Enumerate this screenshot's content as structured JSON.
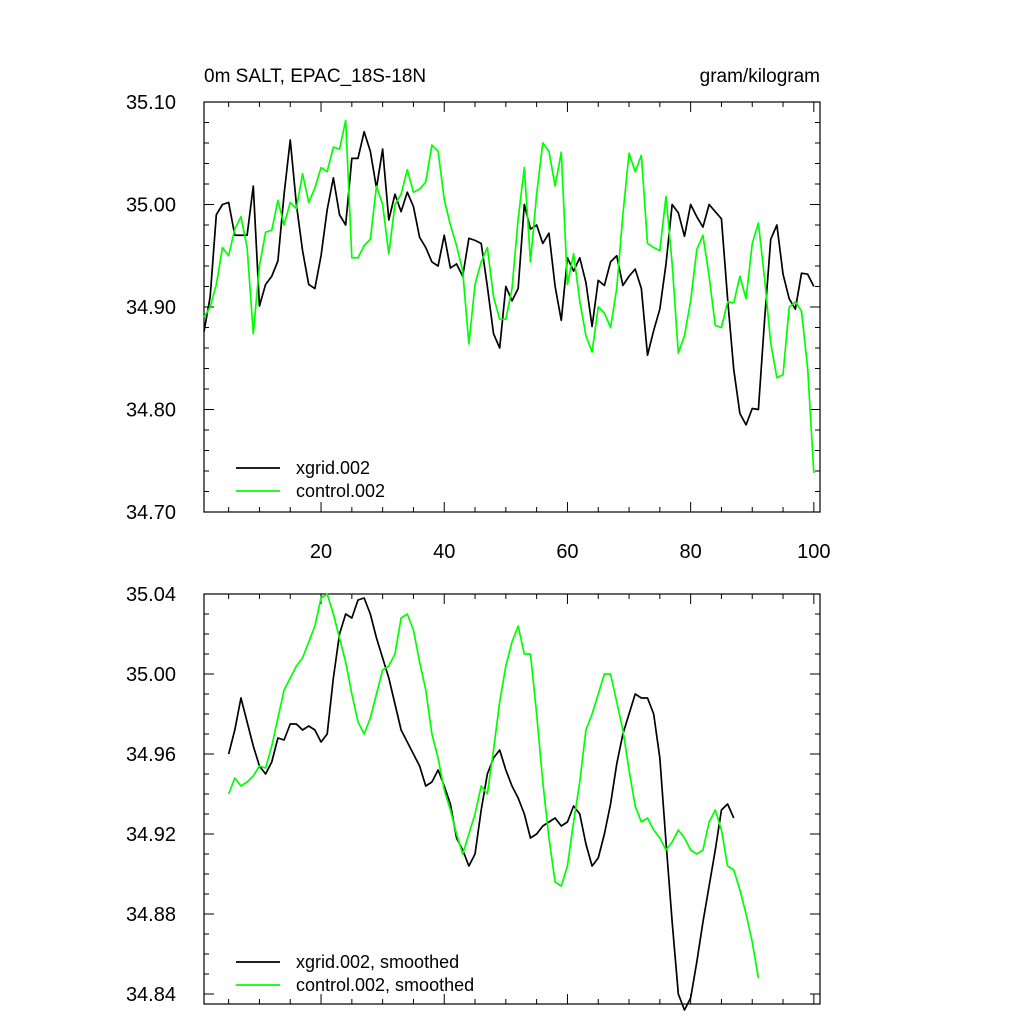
{
  "chart_data": [
    {
      "type": "line",
      "title_left": "0m SALT, EPAC_18S-18N",
      "title_right": "gram/kilogram",
      "xlabel": "",
      "ylabel": "",
      "xlim": [
        1,
        101
      ],
      "ylim": [
        34.7,
        35.1
      ],
      "grid": false,
      "legend_position": "bottom-left",
      "x_ticks": [
        20,
        40,
        60,
        80,
        100
      ],
      "x_tick_labels": [
        "20",
        "40",
        "60",
        "80",
        "100"
      ],
      "y_ticks": [
        34.7,
        34.8,
        34.9,
        35.0,
        35.1
      ],
      "y_tick_labels": [
        "34.70",
        "34.80",
        "34.90",
        "35.00",
        "35.10"
      ],
      "x_start": 1,
      "series": [
        {
          "name": "xgrid.002",
          "color": "#000000",
          "values": [
            34.876,
            34.91,
            34.99,
            35.0,
            35.002,
            34.97,
            34.97,
            34.97,
            35.018,
            34.901,
            34.922,
            34.93,
            34.945,
            35.01,
            35.063,
            35.0,
            34.955,
            34.922,
            34.918,
            34.95,
            34.995,
            35.026,
            34.99,
            34.98,
            35.045,
            35.045,
            35.071,
            35.052,
            35.016,
            35.054,
            34.985,
            35.01,
            34.993,
            35.012,
            34.998,
            34.968,
            34.958,
            34.944,
            34.94,
            34.97,
            34.938,
            34.942,
            34.93,
            34.967,
            34.965,
            34.962,
            34.92,
            34.874,
            34.86,
            34.92,
            34.906,
            34.918,
            35.0,
            34.976,
            34.98,
            34.962,
            34.972,
            34.92,
            34.887,
            34.948,
            34.935,
            34.948,
            34.924,
            34.881,
            34.926,
            34.921,
            34.944,
            34.95,
            34.921,
            34.93,
            34.937,
            34.918,
            34.853,
            34.877,
            34.898,
            34.942,
            35.0,
            34.992,
            34.969,
            35.0,
            34.988,
            34.978,
            35.0,
            34.993,
            34.986,
            34.908,
            34.839,
            34.796,
            34.785,
            34.801,
            34.8,
            34.887,
            34.966,
            34.98,
            34.932,
            34.908,
            34.898,
            34.933,
            34.932,
            34.92
          ]
        },
        {
          "name": "control.002",
          "color": "#00ff00",
          "values": [
            34.89,
            34.9,
            34.922,
            34.958,
            34.95,
            34.976,
            34.988,
            34.958,
            34.874,
            34.94,
            34.973,
            34.975,
            35.004,
            34.98,
            35.002,
            34.996,
            35.03,
            35.002,
            35.016,
            35.036,
            35.032,
            35.056,
            35.054,
            35.082,
            34.948,
            34.948,
            34.96,
            34.966,
            35.018,
            35.0,
            34.952,
            35.0,
            35.01,
            35.034,
            35.012,
            35.015,
            35.022,
            35.058,
            35.052,
            35.005,
            34.98,
            34.96,
            34.935,
            34.864,
            34.922,
            34.944,
            34.958,
            34.91,
            34.888,
            34.888,
            34.918,
            34.986,
            35.036,
            34.944,
            35.01,
            35.06,
            35.052,
            35.018,
            35.051,
            34.922,
            34.952,
            34.906,
            34.872,
            34.856,
            34.9,
            34.894,
            34.88,
            34.918,
            34.99,
            35.05,
            35.032,
            35.048,
            34.962,
            34.958,
            34.955,
            35.008,
            34.942,
            34.855,
            34.872,
            34.906,
            34.956,
            34.97,
            34.93,
            34.882,
            34.88,
            34.905,
            34.904,
            34.93,
            34.908,
            34.962,
            34.982,
            34.928,
            34.865,
            34.831,
            34.834,
            34.9,
            34.905,
            34.896,
            34.84,
            34.738
          ]
        }
      ]
    },
    {
      "type": "line",
      "xlabel": "",
      "ylabel": "",
      "xlim": [
        1,
        101
      ],
      "ylim": [
        34.835,
        35.04
      ],
      "grid": false,
      "legend_position": "bottom-left",
      "x_ticks": [
        20,
        40,
        60,
        80,
        100
      ],
      "y_ticks": [
        34.84,
        34.88,
        34.92,
        34.96,
        35.0,
        35.04
      ],
      "y_tick_labels": [
        "34.84",
        "34.88",
        "34.92",
        "34.96",
        "35.00",
        "35.04"
      ],
      "x_start": 5,
      "series": [
        {
          "name": "xgrid.002, smoothed",
          "color": "#000000",
          "values": [
            34.96,
            34.972,
            34.988,
            34.976,
            34.964,
            34.954,
            34.95,
            34.956,
            34.968,
            34.967,
            34.975,
            34.975,
            34.972,
            34.974,
            34.972,
            34.966,
            34.97,
            34.998,
            35.02,
            35.03,
            35.028,
            35.037,
            35.038,
            35.03,
            35.018,
            35.008,
            34.998,
            34.985,
            34.972,
            34.966,
            34.96,
            34.954,
            34.944,
            34.946,
            34.952,
            34.944,
            34.935,
            34.918,
            34.912,
            34.904,
            34.91,
            34.932,
            34.95,
            34.958,
            34.962,
            34.952,
            34.944,
            34.938,
            34.93,
            34.918,
            34.92,
            34.924,
            34.926,
            34.928,
            34.924,
            34.926,
            34.934,
            34.93,
            34.915,
            34.904,
            34.908,
            34.92,
            34.935,
            34.955,
            34.97,
            34.98,
            34.99,
            34.988,
            34.988,
            34.98,
            34.958,
            34.916,
            34.876,
            34.84,
            34.832,
            34.838,
            34.856,
            34.876,
            34.894,
            34.912,
            34.932,
            34.935,
            34.928
          ]
        },
        {
          "name": "control.002, smoothed",
          "color": "#00ff00",
          "values": [
            34.94,
            34.948,
            34.944,
            34.946,
            34.949,
            34.954,
            34.953,
            34.964,
            34.978,
            34.992,
            34.998,
            35.004,
            35.008,
            35.016,
            35.024,
            35.038,
            35.04,
            35.03,
            35.018,
            35.006,
            34.99,
            34.976,
            34.97,
            34.978,
            34.99,
            35.002,
            35.004,
            35.01,
            35.028,
            35.03,
            35.022,
            35.006,
            34.992,
            34.97,
            34.958,
            34.942,
            34.932,
            34.92,
            34.91,
            34.92,
            34.93,
            34.944,
            34.94,
            34.962,
            34.986,
            35.004,
            35.016,
            35.024,
            35.01,
            35.01,
            34.98,
            34.946,
            34.918,
            34.896,
            34.894,
            34.904,
            34.926,
            34.946,
            34.972,
            34.98,
            34.99,
            35.0,
            35.0,
            34.986,
            34.972,
            34.952,
            34.934,
            34.926,
            34.928,
            34.922,
            34.918,
            34.912,
            34.916,
            34.922,
            34.918,
            34.912,
            34.91,
            34.912,
            34.926,
            34.932,
            34.922,
            34.904,
            34.902,
            34.892,
            34.88,
            34.866,
            34.848
          ]
        }
      ]
    }
  ]
}
